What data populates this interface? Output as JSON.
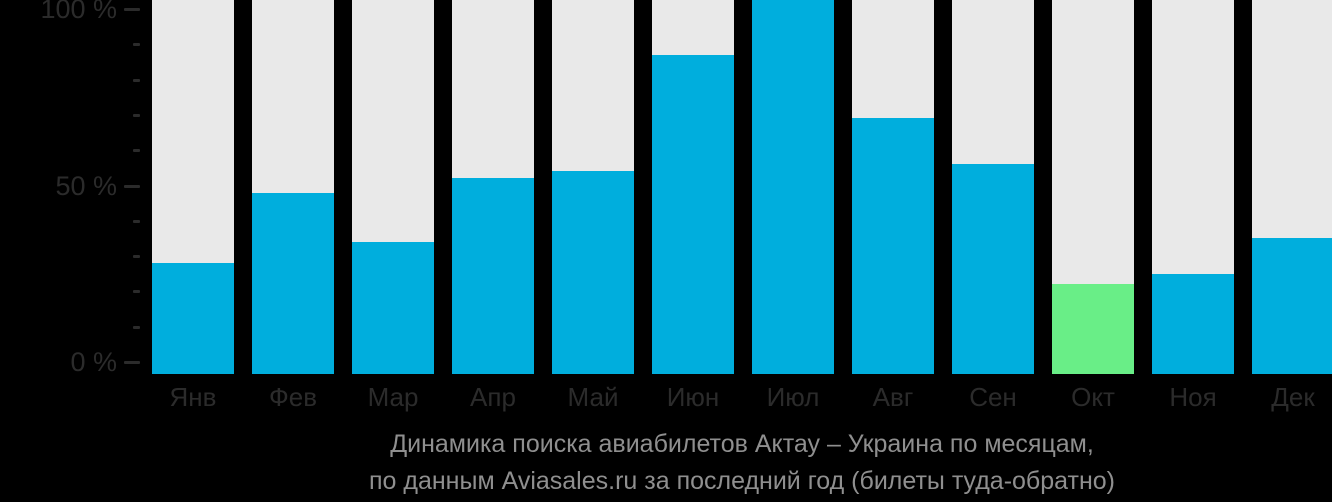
{
  "chart_data": {
    "type": "bar",
    "title_lines": [
      "Динамика поиска авиабилетов Актау – Украина по месяцам,",
      "по данным Aviasales.ru за последний год (билеты туда-обратно)"
    ],
    "categories": [
      "Янв",
      "Фев",
      "Мар",
      "Апр",
      "Май",
      "Июн",
      "Июл",
      "Авг",
      "Сен",
      "Окт",
      "Ноя",
      "Дек"
    ],
    "values": [
      28,
      48,
      34,
      52,
      54,
      87,
      100,
      69,
      56,
      22,
      25,
      35
    ],
    "highlight_index": 9,
    "ylabel": "%",
    "ylim": [
      0,
      100
    ],
    "yticks_major": [
      {
        "label": "100 %",
        "value": 100
      },
      {
        "label": "50 %",
        "value": 50
      },
      {
        "label": "0 %",
        "value": 0
      }
    ],
    "minor_tick_step": 10,
    "grid": false,
    "legend": false,
    "colors": {
      "bar": "#00AEDD",
      "highlight": "#69EE87",
      "track": "#E9E9E9",
      "background": "#000000",
      "axis_text": "#2B2B2B",
      "title_text": "#8F8F8F"
    }
  }
}
